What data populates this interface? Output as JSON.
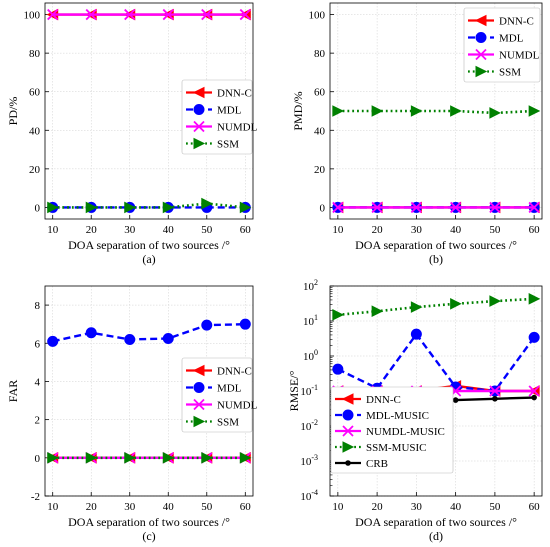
{
  "chart_data": [
    {
      "type": "line",
      "panel": "(a)",
      "xlabel": "DOA separation of two sources /°",
      "ylabel": "PD/%",
      "xlim": [
        10,
        60
      ],
      "ylim": [
        0,
        100
      ],
      "xticks": [
        "10",
        "20",
        "30",
        "40",
        "50",
        "60"
      ],
      "yticks": [
        "0",
        "20",
        "40",
        "60",
        "80",
        "100"
      ],
      "yscale": "linear",
      "grid": true,
      "legend_position": "center-right",
      "x": [
        10,
        20,
        30,
        40,
        50,
        60
      ],
      "series": [
        {
          "name": "DNN-C",
          "color": "#ff0000",
          "marker": "triangle-left",
          "dash": "solid",
          "values": [
            100,
            100,
            100,
            100,
            100,
            100
          ]
        },
        {
          "name": "MDL",
          "color": "#0000ff",
          "marker": "circle",
          "dash": "dashed",
          "values": [
            0,
            0,
            0,
            0,
            0,
            0
          ]
        },
        {
          "name": "NUMDL",
          "color": "#ff00ff",
          "marker": "x",
          "dash": "solid",
          "values": [
            100,
            100,
            100,
            100,
            100,
            100
          ]
        },
        {
          "name": "SSM",
          "color": "#008000",
          "marker": "triangle-right",
          "dash": "dotted",
          "values": [
            0,
            0,
            0,
            0,
            2,
            0
          ]
        }
      ]
    },
    {
      "type": "line",
      "panel": "(b)",
      "xlabel": "DOA separation of two sources /°",
      "ylabel": "PMD/%",
      "xlim": [
        10,
        60
      ],
      "ylim": [
        0,
        100
      ],
      "xticks": [
        "10",
        "20",
        "30",
        "40",
        "50",
        "60"
      ],
      "yticks": [
        "0",
        "20",
        "40",
        "60",
        "80",
        "100"
      ],
      "yscale": "linear",
      "grid": true,
      "legend_position": "top-right",
      "x": [
        10,
        20,
        30,
        40,
        50,
        60
      ],
      "series": [
        {
          "name": "DNN-C",
          "color": "#ff0000",
          "marker": "triangle-left",
          "dash": "solid",
          "values": [
            0,
            0,
            0,
            0,
            0,
            0
          ]
        },
        {
          "name": "MDL",
          "color": "#0000ff",
          "marker": "circle",
          "dash": "dashed",
          "values": [
            0,
            0,
            0,
            0,
            0,
            0
          ]
        },
        {
          "name": "NUMDL",
          "color": "#ff00ff",
          "marker": "x",
          "dash": "solid",
          "values": [
            0,
            0,
            0,
            0,
            0,
            0
          ]
        },
        {
          "name": "SSM",
          "color": "#008000",
          "marker": "triangle-right",
          "dash": "dotted",
          "values": [
            50,
            50,
            50,
            50,
            49,
            50
          ]
        }
      ]
    },
    {
      "type": "line",
      "panel": "(c)",
      "xlabel": "DOA separation of two sources /°",
      "ylabel": "FAR",
      "xlim": [
        10,
        60
      ],
      "ylim": [
        -2,
        9
      ],
      "xticks": [
        "10",
        "20",
        "30",
        "40",
        "50",
        "60"
      ],
      "yticks": [
        "-2",
        "0",
        "2",
        "4",
        "6",
        "8"
      ],
      "yscale": "linear",
      "grid": true,
      "legend_position": "lower-right",
      "x": [
        10,
        20,
        30,
        40,
        50,
        60
      ],
      "series": [
        {
          "name": "DNN-C",
          "color": "#ff0000",
          "marker": "triangle-left",
          "dash": "solid",
          "values": [
            0,
            0,
            0,
            0,
            0,
            0
          ]
        },
        {
          "name": "MDL",
          "color": "#0000ff",
          "marker": "circle",
          "dash": "dashed",
          "values": [
            6.1,
            6.55,
            6.2,
            6.25,
            6.95,
            7.0
          ]
        },
        {
          "name": "NUMDL",
          "color": "#ff00ff",
          "marker": "x",
          "dash": "solid",
          "values": [
            0,
            0,
            0,
            0,
            0,
            0
          ]
        },
        {
          "name": "SSM",
          "color": "#008000",
          "marker": "triangle-right",
          "dash": "dotted",
          "values": [
            0,
            0,
            0,
            0,
            0,
            0
          ]
        }
      ]
    },
    {
      "type": "line",
      "panel": "(d)",
      "xlabel": "DOA separation of two sources /°",
      "ylabel": "RMSE/°",
      "xlim": [
        10,
        60
      ],
      "ylim": [
        0.0001,
        100
      ],
      "xticks": [
        "10",
        "20",
        "30",
        "40",
        "50",
        "60"
      ],
      "yticks": [
        "10",
        "10",
        "10",
        "10",
        "10",
        "10",
        "10"
      ],
      "ytick_exponents": [
        "-4",
        "-3",
        "-2",
        "-1",
        "0",
        "1",
        "2"
      ],
      "yscale": "log",
      "grid": true,
      "legend_position": "lower-left",
      "x": [
        10,
        20,
        30,
        40,
        50,
        60
      ],
      "series": [
        {
          "name": "DNN-C",
          "color": "#ff0000",
          "marker": "triangle-left",
          "dash": "solid",
          "values": [
            0.1,
            0.1,
            0.1,
            0.14,
            0.1,
            0.1
          ]
        },
        {
          "name": "MDL-MUSIC",
          "color": "#0000ff",
          "marker": "circle",
          "dash": "dashed",
          "values": [
            0.42,
            0.12,
            4.2,
            0.13,
            0.1,
            3.4
          ]
        },
        {
          "name": "NUMDL-MUSIC",
          "color": "#ff00ff",
          "marker": "x",
          "dash": "solid",
          "values": [
            0.1,
            0.1,
            0.1,
            0.1,
            0.1,
            0.1
          ]
        },
        {
          "name": "SSM-MUSIC",
          "color": "#008000",
          "marker": "triangle-right",
          "dash": "dotted",
          "values": [
            15,
            19,
            25,
            31,
            37,
            43
          ]
        },
        {
          "name": "CRB",
          "color": "#000000",
          "marker": "dot",
          "dash": "solid",
          "values": [
            0.062,
            0.055,
            0.053,
            0.055,
            0.06,
            0.065
          ]
        }
      ]
    }
  ]
}
